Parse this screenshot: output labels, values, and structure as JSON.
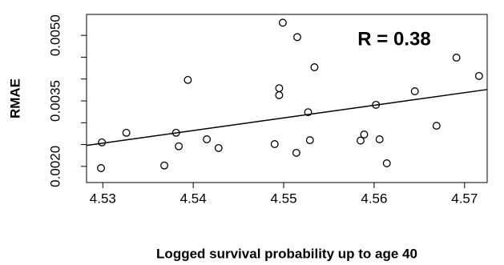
{
  "chart_data": {
    "type": "scatter",
    "annotation": "R = 0.38",
    "x_label": "Logged survival probability up to age 40",
    "y_label": "RMAE",
    "x": [
      4.5298,
      4.5299,
      4.5326,
      4.5368,
      4.5381,
      4.5384,
      4.5394,
      4.5415,
      4.5428,
      4.5499,
      4.549,
      4.5495,
      4.5495,
      4.5515,
      4.5514,
      4.5527,
      4.5529,
      4.5534,
      4.5585,
      4.5589,
      4.5602,
      4.5606,
      4.5614,
      4.5645,
      4.5669,
      4.5691,
      4.5716
    ],
    "values": [
      0.00196,
      0.00255,
      0.00277,
      0.00202,
      0.00277,
      0.00246,
      0.00398,
      0.00262,
      0.00242,
      0.00529,
      0.00251,
      0.00363,
      0.00379,
      0.00496,
      0.00231,
      0.00324,
      0.0026,
      0.00427,
      0.00259,
      0.00273,
      0.00341,
      0.00262,
      0.00207,
      0.00372,
      0.00293,
      0.00449,
      0.00407
    ],
    "color": "#000000",
    "fit": {
      "x": [
        4.5282,
        4.5725
      ],
      "y": [
        0.00248,
        0.00376
      ]
    },
    "xlim": [
      4.5282,
      4.5725
    ],
    "ylim": [
      0.00163,
      0.00548
    ],
    "xticks": [
      4.53,
      4.54,
      4.55,
      4.56,
      4.57
    ],
    "yticks": [
      {
        "value": 0.002,
        "label": "0.0020"
      },
      {
        "value": 0.0025
      },
      {
        "value": 0.003
      },
      {
        "value": 0.0035,
        "label": "0.0035"
      },
      {
        "value": 0.004
      },
      {
        "value": 0.0045
      },
      {
        "value": 0.005,
        "label": "0.0050"
      }
    ]
  }
}
